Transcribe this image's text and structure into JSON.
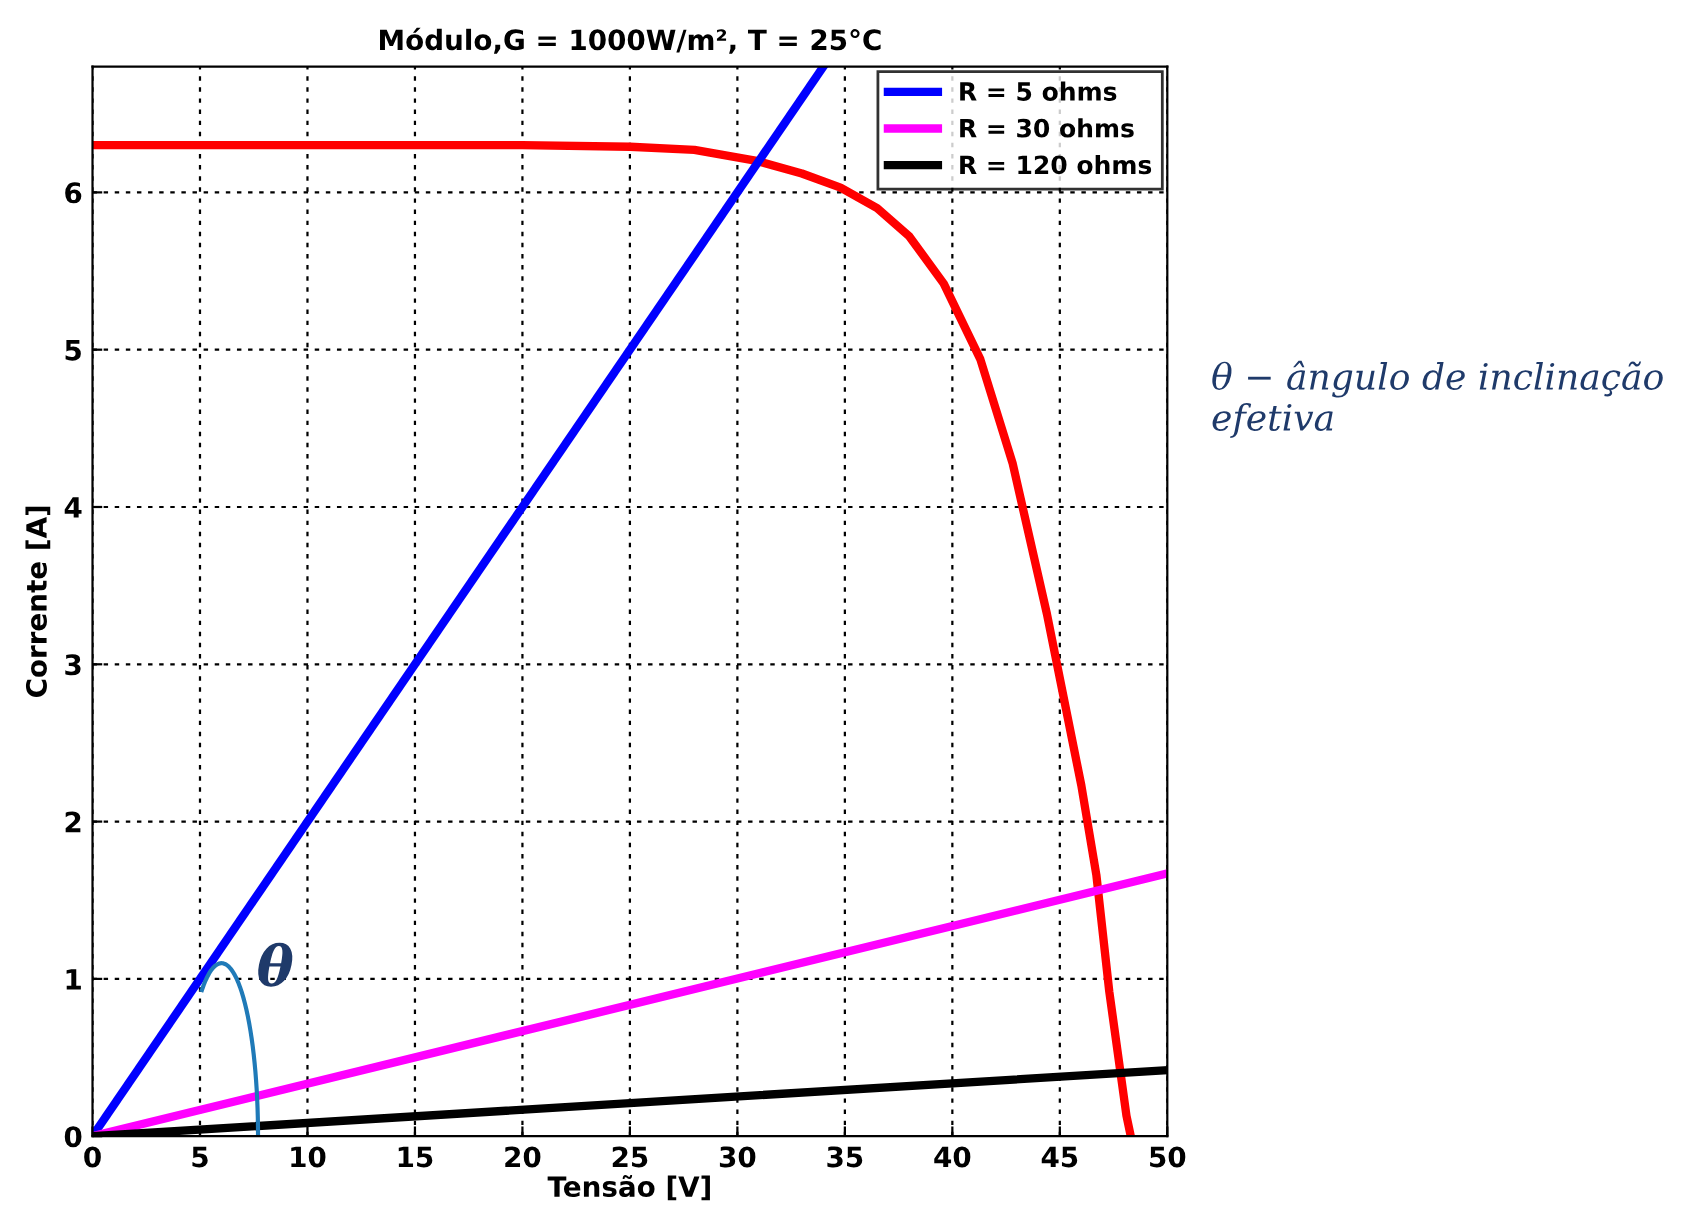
{
  "chart_data": {
    "type": "line",
    "title": "Módulo,G = 1000W/m², T = 25°C",
    "xlabel": "Tensão [V]",
    "ylabel": "Corrente [A]",
    "xlim": [
      0,
      50
    ],
    "xticks": [
      0,
      5,
      10,
      15,
      20,
      25,
      30,
      35,
      40,
      45,
      50
    ],
    "ylim": [
      0,
      6.8
    ],
    "yticks": [
      0,
      1,
      2,
      3,
      4,
      5,
      6
    ],
    "grid": true,
    "line_style": "solid",
    "legend": "top right",
    "series": [
      {
        "color": "#ff0000",
        "x": [
          0,
          10,
          20,
          25,
          28,
          30.9,
          33,
          34.8,
          36.5,
          38.0,
          39.6,
          41.3,
          42.8,
          44.4,
          46.0,
          46.7,
          47.3,
          48.1,
          48.3
        ],
        "values": [
          6.3,
          6.3,
          6.3,
          6.29,
          6.27,
          6.2,
          6.12,
          6.03,
          5.9,
          5.72,
          5.42,
          4.94,
          4.28,
          3.32,
          2.23,
          1.66,
          0.92,
          0.13,
          0
        ]
      },
      {
        "name": "R = 5 ohms",
        "color": "#0000ff",
        "x": [
          0,
          34
        ],
        "values": [
          0,
          6.8
        ]
      },
      {
        "name": "R = 30 ohms",
        "color": "#ff00ff",
        "x": [
          0,
          50
        ],
        "values": [
          0,
          1.67
        ]
      },
      {
        "name": "R = 120 ohms",
        "color": "#000000",
        "x": [
          0,
          50
        ],
        "values": [
          0,
          0.42
        ]
      }
    ],
    "annotations": [
      "θ",
      "θ − ângulo de inclinação efetiva"
    ]
  }
}
